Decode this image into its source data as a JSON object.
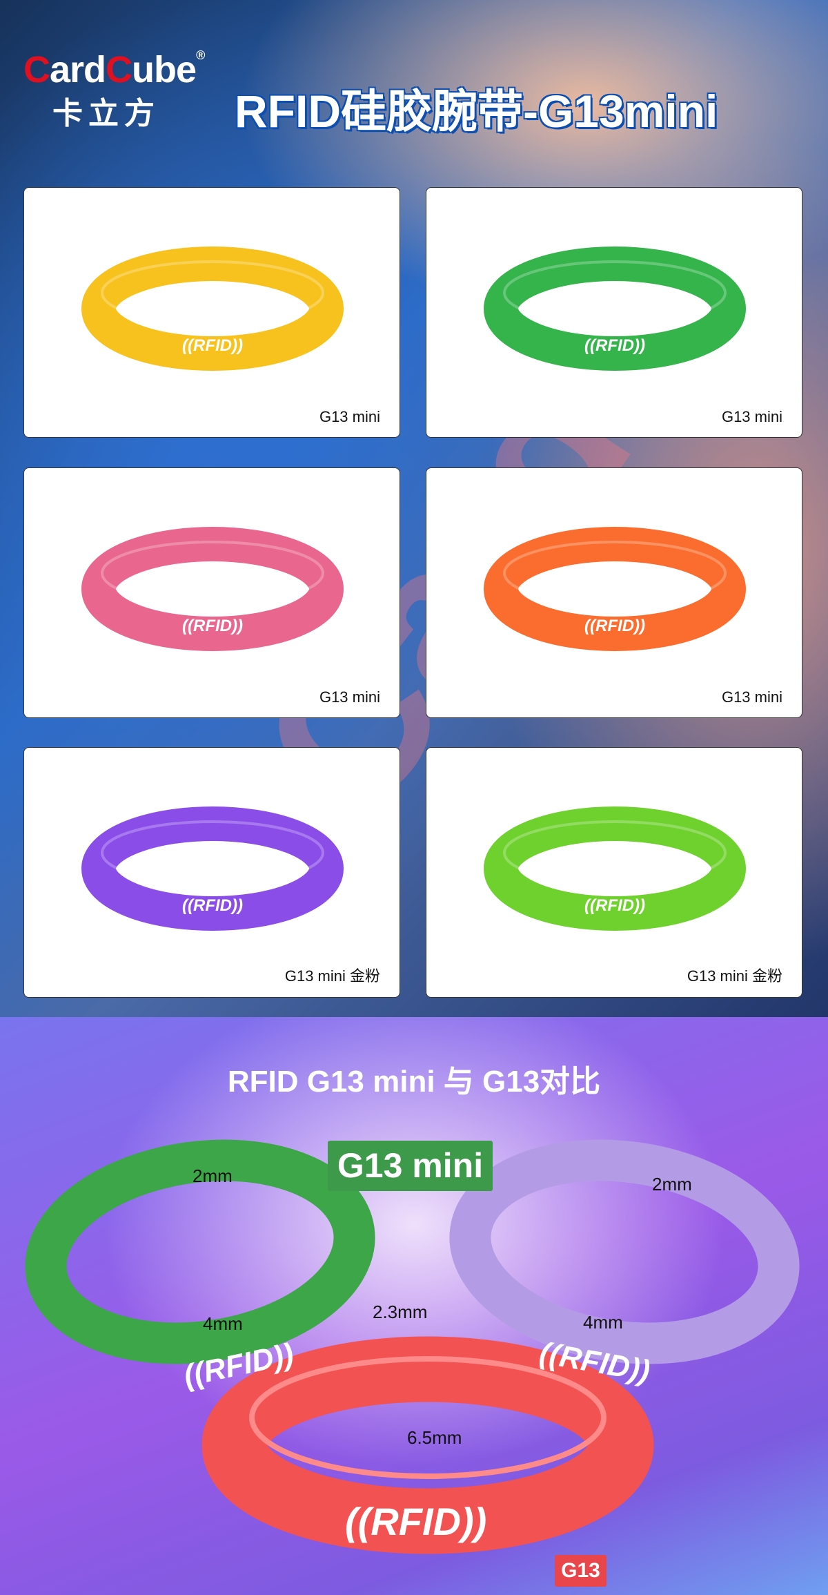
{
  "logo": {
    "brand_red_1": "C",
    "brand_1": "ard",
    "brand_red_2": "C",
    "brand_2": "ube",
    "registered": "®",
    "chinese": "卡立方"
  },
  "header": {
    "title": "RFID硅胶腕带-G13mini"
  },
  "products": [
    {
      "label": "G13 mini",
      "color": "#f7c21d",
      "band_text": "((RFID))"
    },
    {
      "label": "G13 mini",
      "color": "#35b44c",
      "band_text": "((RFID))"
    },
    {
      "label": "G13 mini",
      "color": "#e9668e",
      "band_text": "((RFID))"
    },
    {
      "label": "G13 mini",
      "color": "#fb6d2e",
      "band_text": "((RFID))"
    },
    {
      "label": "G13 mini 金粉",
      "color": "#8b4de8",
      "band_text": "((RFID))"
    },
    {
      "label": "G13 mini 金粉",
      "color": "#6fd12e",
      "band_text": "((RFID))"
    }
  ],
  "comparison": {
    "title": "RFID G13 mini 与 G13对比",
    "mini_badge": "G13 mini",
    "g13_badge": "G13",
    "band_text": "((RFID))",
    "dims": {
      "green_thickness": "2mm",
      "green_width": "4mm",
      "purple_thickness": "2mm",
      "purple_width": "4mm",
      "red_thickness": "2.3mm",
      "red_width": "6.5mm"
    },
    "colors": {
      "green": "#3da648",
      "purple": "#b49be6",
      "red": "#f25252",
      "mini_badge_bg": "#3d9a4b",
      "g13_badge_bg": "#e8464a"
    }
  }
}
